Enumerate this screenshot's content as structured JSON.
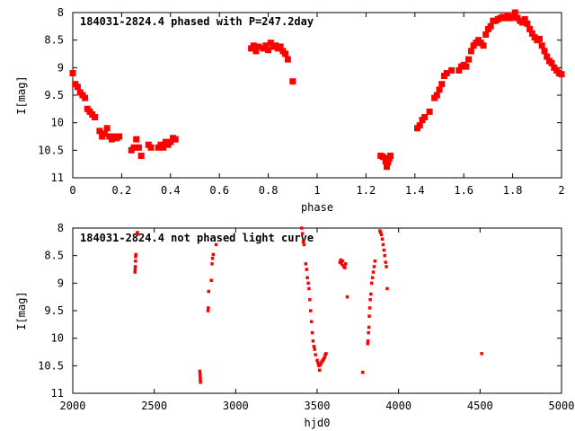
{
  "chart_data": [
    {
      "type": "scatter",
      "title": "184031-2824.4 phased with P=247.2day",
      "xlabel": "phase",
      "ylabel": "I[mag]",
      "xlim": [
        0,
        2
      ],
      "ylim": [
        8,
        11
      ],
      "y_inverted": true,
      "xticks": [
        "0",
        "0.2",
        "0.4",
        "0.6",
        "0.8",
        "1",
        "1.2",
        "1.4",
        "1.6",
        "1.8",
        "2"
      ],
      "yticks": [
        "8",
        "8.5",
        "9",
        "9.5",
        "10",
        "10.5",
        "11"
      ],
      "series": [
        {
          "color": "#ff0000",
          "points": [
            [
              0.0,
              9.1
            ],
            [
              0.01,
              9.3
            ],
            [
              0.02,
              9.35
            ],
            [
              0.03,
              9.45
            ],
            [
              0.04,
              9.5
            ],
            [
              0.05,
              9.55
            ],
            [
              0.06,
              9.75
            ],
            [
              0.07,
              9.8
            ],
            [
              0.08,
              9.85
            ],
            [
              0.09,
              9.9
            ],
            [
              0.11,
              10.15
            ],
            [
              0.12,
              10.25
            ],
            [
              0.13,
              10.2
            ],
            [
              0.14,
              10.1
            ],
            [
              0.15,
              10.25
            ],
            [
              0.16,
              10.3
            ],
            [
              0.17,
              10.25
            ],
            [
              0.18,
              10.28
            ],
            [
              0.19,
              10.25
            ],
            [
              0.24,
              10.5
            ],
            [
              0.25,
              10.45
            ],
            [
              0.26,
              10.3
            ],
            [
              0.27,
              10.45
            ],
            [
              0.28,
              10.6
            ],
            [
              0.31,
              10.4
            ],
            [
              0.32,
              10.45
            ],
            [
              0.35,
              10.45
            ],
            [
              0.36,
              10.4
            ],
            [
              0.37,
              10.45
            ],
            [
              0.38,
              10.35
            ],
            [
              0.39,
              10.4
            ],
            [
              0.4,
              10.35
            ],
            [
              0.41,
              10.28
            ],
            [
              0.42,
              10.3
            ],
            [
              0.73,
              8.65
            ],
            [
              0.74,
              8.6
            ],
            [
              0.75,
              8.7
            ],
            [
              0.76,
              8.62
            ],
            [
              0.78,
              8.65
            ],
            [
              0.79,
              8.6
            ],
            [
              0.8,
              8.68
            ],
            [
              0.81,
              8.55
            ],
            [
              0.82,
              8.62
            ],
            [
              0.83,
              8.6
            ],
            [
              0.84,
              8.65
            ],
            [
              0.85,
              8.62
            ],
            [
              0.86,
              8.7
            ],
            [
              0.87,
              8.75
            ],
            [
              0.88,
              8.85
            ],
            [
              0.9,
              9.25
            ],
            [
              1.26,
              10.6
            ],
            [
              1.27,
              10.62
            ],
            [
              1.28,
              10.7
            ],
            [
              1.285,
              10.8
            ],
            [
              1.29,
              10.72
            ],
            [
              1.295,
              10.65
            ],
            [
              1.3,
              10.6
            ],
            [
              1.41,
              10.1
            ],
            [
              1.42,
              10.05
            ],
            [
              1.43,
              9.95
            ],
            [
              1.44,
              9.9
            ],
            [
              1.46,
              9.8
            ],
            [
              1.48,
              9.55
            ],
            [
              1.49,
              9.5
            ],
            [
              1.5,
              9.4
            ],
            [
              1.51,
              9.3
            ],
            [
              1.52,
              9.15
            ],
            [
              1.53,
              9.1
            ],
            [
              1.55,
              9.05
            ],
            [
              1.58,
              9.05
            ],
            [
              1.59,
              8.98
            ],
            [
              1.6,
              8.95
            ],
            [
              1.61,
              8.98
            ],
            [
              1.62,
              8.85
            ],
            [
              1.63,
              8.7
            ],
            [
              1.64,
              8.6
            ],
            [
              1.65,
              8.55
            ],
            [
              1.66,
              8.5
            ],
            [
              1.67,
              8.55
            ],
            [
              1.68,
              8.6
            ],
            [
              1.69,
              8.4
            ],
            [
              1.7,
              8.3
            ],
            [
              1.71,
              8.25
            ],
            [
              1.72,
              8.15
            ],
            [
              1.73,
              8.15
            ],
            [
              1.74,
              8.12
            ],
            [
              1.75,
              8.1
            ],
            [
              1.76,
              8.08
            ],
            [
              1.77,
              8.1
            ],
            [
              1.78,
              8.05
            ],
            [
              1.79,
              8.1
            ],
            [
              1.8,
              8.08
            ],
            [
              1.81,
              8.0
            ],
            [
              1.82,
              8.1
            ],
            [
              1.83,
              8.15
            ],
            [
              1.84,
              8.18
            ],
            [
              1.85,
              8.12
            ],
            [
              1.86,
              8.2
            ],
            [
              1.87,
              8.3
            ],
            [
              1.88,
              8.38
            ],
            [
              1.89,
              8.45
            ],
            [
              1.9,
              8.5
            ],
            [
              1.91,
              8.48
            ],
            [
              1.92,
              8.6
            ],
            [
              1.93,
              8.7
            ],
            [
              1.94,
              8.8
            ],
            [
              1.95,
              8.88
            ],
            [
              1.96,
              8.92
            ],
            [
              1.97,
              9.0
            ],
            [
              1.98,
              9.05
            ],
            [
              1.99,
              9.1
            ],
            [
              2.0,
              9.12
            ]
          ]
        }
      ]
    },
    {
      "type": "scatter",
      "title": "184031-2824.4 not phased light curve",
      "xlabel": "hjd0",
      "ylabel": "I[mag]",
      "xlim": [
        2000,
        5000
      ],
      "ylim": [
        8,
        11
      ],
      "y_inverted": true,
      "xticks": [
        "2000",
        "2500",
        "3000",
        "3500",
        "4000",
        "4500",
        "5000"
      ],
      "yticks": [
        "8",
        "8.5",
        "9",
        "9.5",
        "10",
        "10.5",
        "11"
      ],
      "series": [
        {
          "color": "#ff0000",
          "points": [
            [
              2382,
              8.8
            ],
            [
              2383,
              8.75
            ],
            [
              2384,
              8.7
            ],
            [
              2385,
              8.6
            ],
            [
              2386,
              8.52
            ],
            [
              2387,
              8.48
            ],
            [
              2395,
              8.12
            ],
            [
              2396,
              8.1
            ],
            [
              2397,
              8.08
            ],
            [
              2780,
              10.6
            ],
            [
              2781,
              10.65
            ],
            [
              2782,
              10.7
            ],
            [
              2783,
              10.75
            ],
            [
              2784,
              10.8
            ],
            [
              2830,
              9.5
            ],
            [
              2832,
              9.45
            ],
            [
              2834,
              9.15
            ],
            [
              2850,
              8.95
            ],
            [
              2855,
              8.65
            ],
            [
              2858,
              8.55
            ],
            [
              2862,
              8.48
            ],
            [
              2880,
              8.3
            ],
            [
              3405,
              8.0
            ],
            [
              3410,
              8.1
            ],
            [
              3415,
              8.25
            ],
            [
              3420,
              8.3
            ],
            [
              3430,
              8.65
            ],
            [
              3435,
              8.75
            ],
            [
              3440,
              8.9
            ],
            [
              3445,
              9.0
            ],
            [
              3450,
              9.1
            ],
            [
              3455,
              9.3
            ],
            [
              3460,
              9.5
            ],
            [
              3465,
              9.7
            ],
            [
              3470,
              9.9
            ],
            [
              3475,
              10.05
            ],
            [
              3480,
              10.15
            ],
            [
              3485,
              10.2
            ],
            [
              3490,
              10.3
            ],
            [
              3500,
              10.4
            ],
            [
              3505,
              10.45
            ],
            [
              3510,
              10.5
            ],
            [
              3515,
              10.58
            ],
            [
              3520,
              10.48
            ],
            [
              3525,
              10.45
            ],
            [
              3530,
              10.42
            ],
            [
              3535,
              10.4
            ],
            [
              3540,
              10.38
            ],
            [
              3545,
              10.35
            ],
            [
              3550,
              10.3
            ],
            [
              3555,
              10.28
            ],
            [
              3640,
              8.62
            ],
            [
              3645,
              8.58
            ],
            [
              3650,
              8.65
            ],
            [
              3655,
              8.6
            ],
            [
              3660,
              8.68
            ],
            [
              3665,
              8.7
            ],
            [
              3670,
              8.72
            ],
            [
              3675,
              8.65
            ],
            [
              3685,
              9.25
            ],
            [
              3780,
              10.62
            ],
            [
              3810,
              10.1
            ],
            [
              3812,
              10.05
            ],
            [
              3815,
              9.9
            ],
            [
              3818,
              9.8
            ],
            [
              3820,
              9.6
            ],
            [
              3823,
              9.45
            ],
            [
              3826,
              9.3
            ],
            [
              3830,
              9.2
            ],
            [
              3835,
              9.0
            ],
            [
              3840,
              8.9
            ],
            [
              3845,
              8.8
            ],
            [
              3850,
              8.7
            ],
            [
              3855,
              8.6
            ],
            [
              3885,
              8.05
            ],
            [
              3890,
              8.08
            ],
            [
              3895,
              8.12
            ],
            [
              3900,
              8.2
            ],
            [
              3905,
              8.3
            ],
            [
              3910,
              8.4
            ],
            [
              3915,
              8.5
            ],
            [
              3920,
              8.62
            ],
            [
              3925,
              8.7
            ],
            [
              3930,
              9.1
            ],
            [
              4510,
              10.28
            ]
          ]
        }
      ]
    }
  ]
}
